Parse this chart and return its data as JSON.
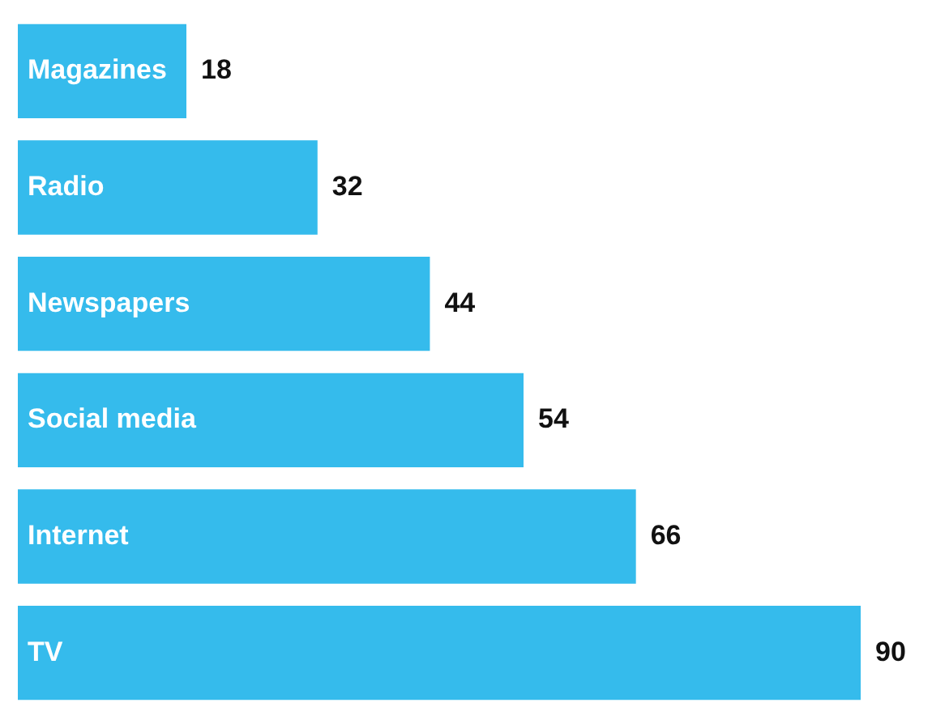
{
  "chart_data": {
    "type": "bar",
    "orientation": "horizontal",
    "categories": [
      "Magazines",
      "Radio",
      "Newspapers",
      "Social media",
      "Internet",
      "TV"
    ],
    "values": [
      18,
      32,
      44,
      54,
      66,
      90
    ],
    "color": "#35bbec",
    "data_labels": true,
    "legend": false
  }
}
